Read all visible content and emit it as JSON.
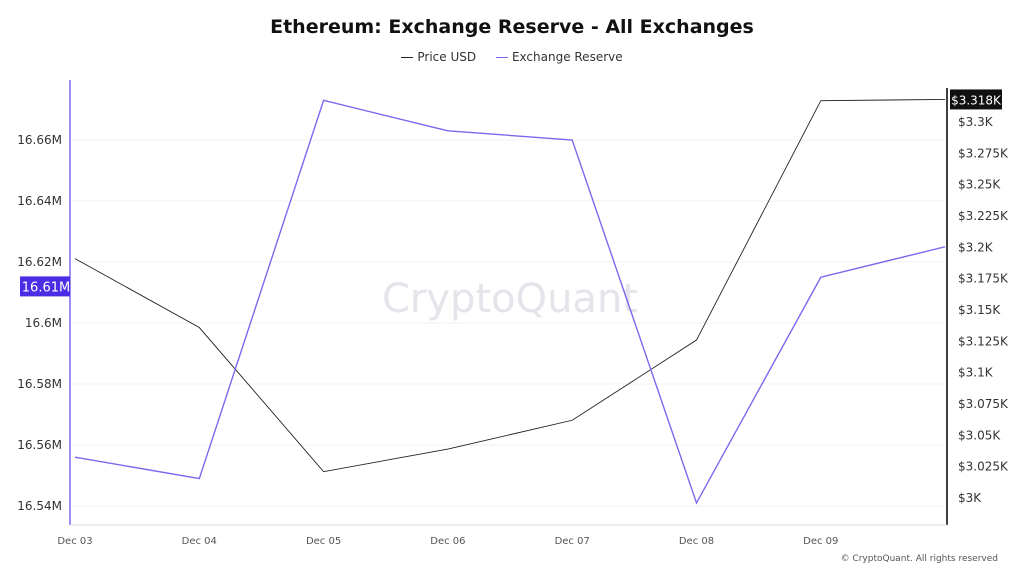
{
  "chart_data": {
    "type": "line",
    "title": "Ethereum: Exchange Reserve - All Exchanges",
    "categories": [
      "Dec 03",
      "Dec 04",
      "Dec 05",
      "Dec 06",
      "Dec 07",
      "Dec 08",
      "Dec 09",
      ""
    ],
    "series": [
      {
        "name": "Price USD",
        "axis": "right",
        "color": "#222222",
        "values": [
          3191,
          3136,
          3021,
          3039,
          3062,
          3126,
          3317,
          3318
        ]
      },
      {
        "name": "Exchange Reserve",
        "axis": "left",
        "color": "#7b68ee",
        "values": [
          16556000,
          16549000,
          16673000,
          16663000,
          16660000,
          16541000,
          16615000,
          16625000
        ]
      }
    ],
    "left_axis": {
      "ticks": [
        "16.54M",
        "16.56M",
        "16.58M",
        "16.6M",
        "16.62M",
        "16.64M",
        "16.66M"
      ],
      "tick_values": [
        16540000,
        16560000,
        16580000,
        16600000,
        16620000,
        16640000,
        16660000
      ],
      "highlight_label": "16.61M",
      "highlight_value": 16612000,
      "highlight_color": "#4a2ee6"
    },
    "right_axis": {
      "ticks": [
        "$3K",
        "$3.025K",
        "$3.05K",
        "$3.075K",
        "$3.1K",
        "$3.125K",
        "$3.15K",
        "$3.175K",
        "$3.2K",
        "$3.225K",
        "$3.25K",
        "$3.275K",
        "$3.3K"
      ],
      "tick_values": [
        3000,
        3025,
        3050,
        3075,
        3100,
        3125,
        3150,
        3175,
        3200,
        3225,
        3250,
        3275,
        3300
      ],
      "highlight_label": "$3.318K",
      "highlight_value": 3318
    },
    "grid": true,
    "legend": "top-center"
  },
  "watermark": "CryptoQuant",
  "copyright": "© CryptoQuant. All rights reserved"
}
